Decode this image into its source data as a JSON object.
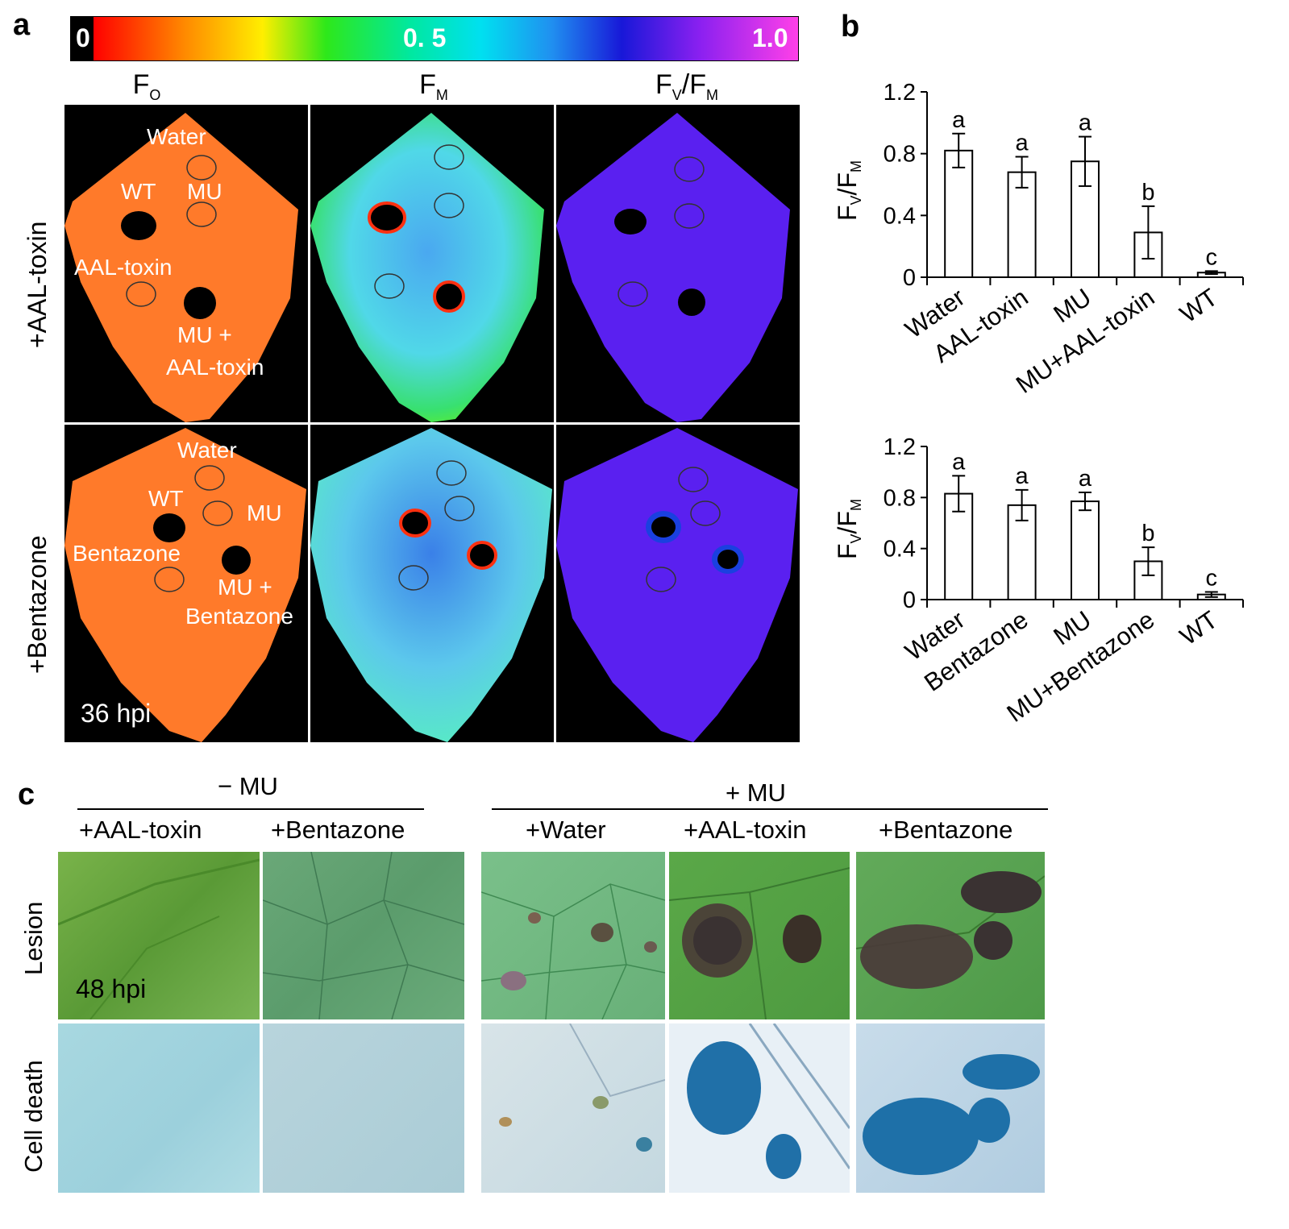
{
  "panel_a": {
    "letter": "a",
    "colorbar": {
      "min_label": "0",
      "mid_label": "0. 5",
      "max_label": "1.0"
    },
    "column_headers": [
      {
        "base": "F",
        "sub": "O"
      },
      {
        "base": "F",
        "sub": "M"
      },
      {
        "base": "F",
        "sub": "V",
        "base2": "/F",
        "sub2": "M"
      }
    ],
    "row_labels": [
      "+AAL-toxin",
      "+Bentazone"
    ],
    "row1_spots": [
      "Water",
      "WT",
      "MU",
      "AAL-toxin",
      "MU +",
      "AAL-toxin"
    ],
    "row2_spots": [
      "Water",
      "WT",
      "MU",
      "Bentazone",
      "MU +",
      "Bentazone"
    ],
    "time_label": "36 hpi",
    "colors": {
      "fo_leaf": "#ff7a2a",
      "fvfm_leaf": "#5a20f0",
      "background": "#000000"
    }
  },
  "panel_b": {
    "letter": "b",
    "ylabel_main": "F",
    "ylabel_sub1": "V",
    "ylabel_mid": "/F",
    "ylabel_sub2": "M"
  },
  "chart_data": [
    {
      "type": "bar",
      "categories": [
        "Water",
        "AAL-toxin",
        "MU",
        "MU+AAL-toxin",
        "WT"
      ],
      "values": [
        0.82,
        0.68,
        0.75,
        0.29,
        0.03
      ],
      "errors": [
        0.11,
        0.1,
        0.16,
        0.17,
        0.01
      ],
      "letters": [
        "a",
        "a",
        "a",
        "b",
        "c"
      ],
      "ylim": [
        0,
        1.2
      ],
      "yticks": [
        "0",
        "0.4",
        "0.8",
        "1.2"
      ]
    },
    {
      "type": "bar",
      "categories": [
        "Water",
        "Bentazone",
        "MU",
        "MU+Bentazone",
        "WT"
      ],
      "values": [
        0.83,
        0.74,
        0.77,
        0.3,
        0.04
      ],
      "errors": [
        0.14,
        0.12,
        0.07,
        0.11,
        0.02
      ],
      "letters": [
        "a",
        "a",
        "a",
        "b",
        "c"
      ],
      "ylim": [
        0,
        1.2
      ],
      "yticks": [
        "0",
        "0.4",
        "0.8",
        "1.2"
      ]
    }
  ],
  "panel_c": {
    "letter": "c",
    "group_minus": "− MU",
    "group_plus": "+ MU",
    "columns": [
      "+AAL-toxin",
      "+Bentazone",
      "+Water",
      "+AAL-toxin",
      "+Bentazone"
    ],
    "row_labels": [
      "Lesion",
      "Cell death"
    ],
    "time_label": "48 hpi"
  }
}
